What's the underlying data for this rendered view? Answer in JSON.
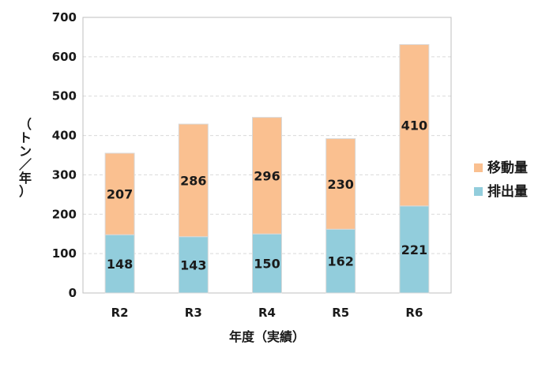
{
  "chart_data": {
    "type": "bar",
    "stacked": true,
    "categories": [
      "R2",
      "R3",
      "R4",
      "R5",
      "R6"
    ],
    "series": [
      {
        "name": "排出量",
        "values": [
          148,
          143,
          150,
          162,
          221
        ],
        "color": "#92CDDC"
      },
      {
        "name": "移動量",
        "values": [
          207,
          286,
          296,
          230,
          410
        ],
        "color": "#FAC090"
      }
    ],
    "xlabel": "年度（実績）",
    "ylabel": "（トン／年）",
    "ylim": [
      0,
      700
    ],
    "yticks": [
      0,
      100,
      200,
      300,
      400,
      500,
      600,
      700
    ],
    "grid": true,
    "legend_position": "right",
    "legend_order": [
      "移動量",
      "排出量"
    ]
  }
}
